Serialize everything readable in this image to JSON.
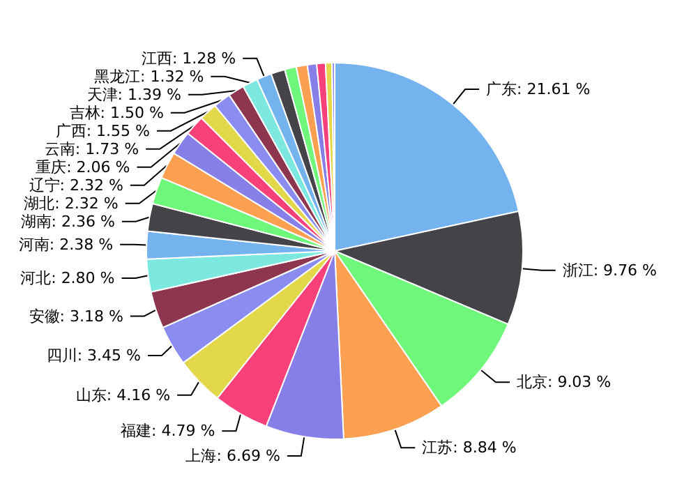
{
  "chart_data": {
    "type": "pie",
    "categories": [
      "广东",
      "浙江",
      "北京",
      "江苏",
      "上海",
      "福建",
      "山东",
      "四川",
      "安徽",
      "河北",
      "河南",
      "湖南",
      "湖北",
      "辽宁",
      "重庆",
      "云南",
      "广西",
      "吉林",
      "天津",
      "黑龙江",
      "江西",
      null,
      null,
      null,
      null,
      null,
      null,
      null
    ],
    "values": [
      21.61,
      9.76,
      9.03,
      8.84,
      6.69,
      4.79,
      4.16,
      3.45,
      3.18,
      2.8,
      2.38,
      2.36,
      2.32,
      2.32,
      2.06,
      1.73,
      1.55,
      1.5,
      1.39,
      1.32,
      1.28,
      1.2,
      1.0,
      0.95,
      0.8,
      0.75,
      0.55,
      0.23
    ],
    "value_labels": [
      "21.61 %",
      "9.76 %",
      "9.03 %",
      "8.84 %",
      "6.69 %",
      "4.79 %",
      "4.16 %",
      "3.45 %",
      "3.18 %",
      "2.80 %",
      "2.38 %",
      "2.36 %",
      "2.32 %",
      "2.32 %",
      "2.06 %",
      "1.73 %",
      "1.55 %",
      "1.50 %",
      "1.39 %",
      "1.32 %",
      "1.28 %",
      null,
      null,
      null,
      null,
      null,
      null,
      null
    ],
    "colors": [
      "#74b3ee",
      "#434348",
      "#6ff77b",
      "#fb9f50",
      "#877fe8",
      "#f8407a",
      "#e2d84a",
      "#8a8cf0",
      "#8e3650",
      "#7ce8e0",
      "#74b3ee",
      "#434348",
      "#6ff77b",
      "#fb9f50",
      "#877fe8",
      "#f8407a",
      "#e2d84a",
      "#8a8cf0",
      "#8e3650",
      "#7ce8e0",
      "#74b3ee",
      "#434348",
      "#6ff77b",
      "#fb9f50",
      "#877fe8",
      "#f8407a",
      "#e2d84a",
      "#8a8cf0"
    ]
  }
}
